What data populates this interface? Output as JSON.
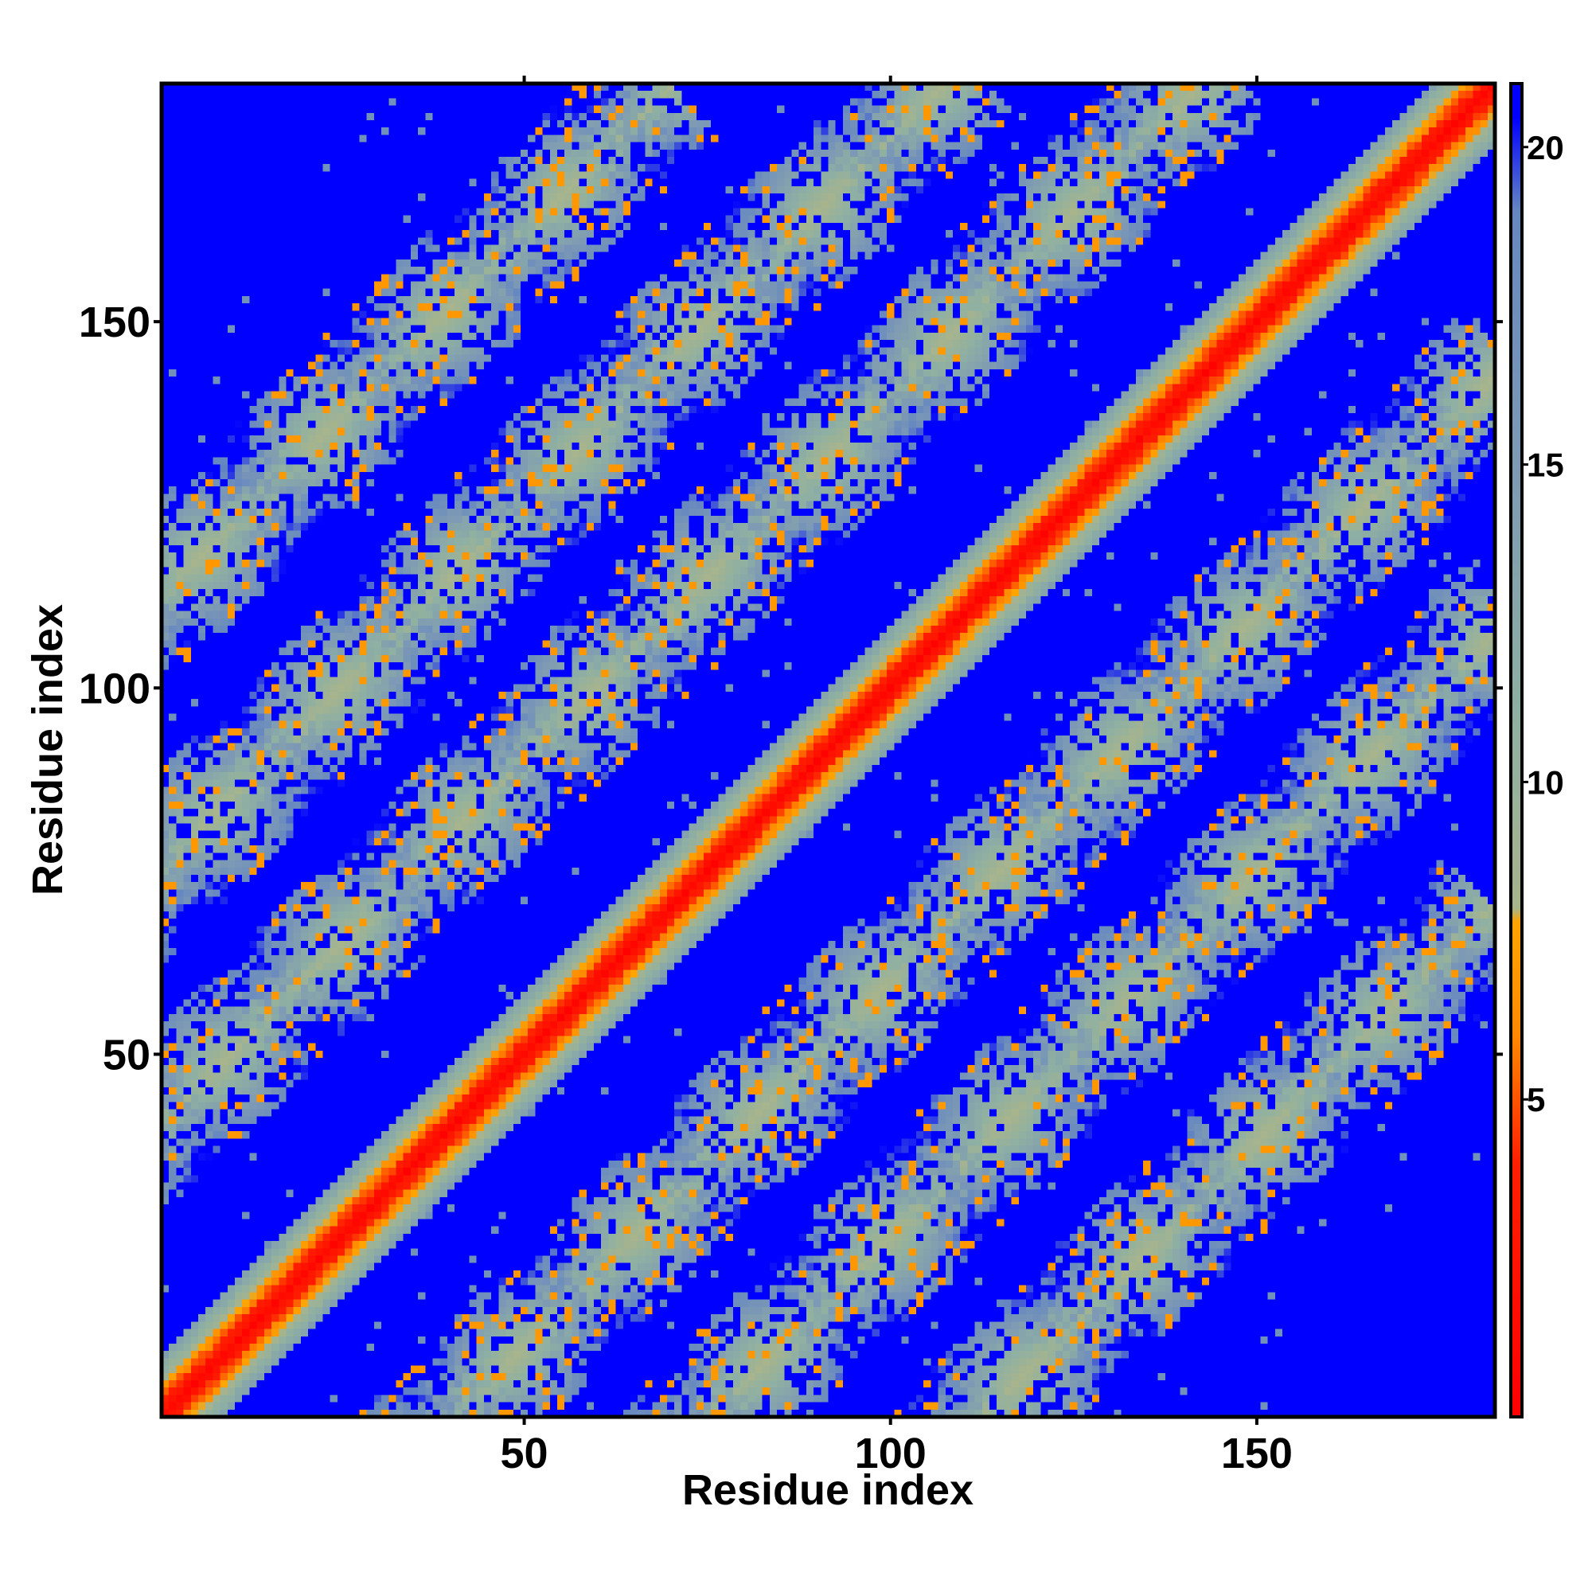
{
  "chart_data": {
    "type": "heatmap",
    "title": "",
    "xlabel": "Residue index",
    "ylabel": "Residue index",
    "n_residues": 182,
    "xlim": [
      1,
      182
    ],
    "ylim": [
      1,
      182
    ],
    "x_ticks": [
      50,
      100,
      150
    ],
    "y_ticks": [
      50,
      100,
      150
    ],
    "colorbar": {
      "min": 0,
      "max": 21,
      "ticks": [
        5,
        10,
        15,
        20
      ],
      "stops": [
        {
          "value": 0,
          "color": "#ff0000"
        },
        {
          "value": 4,
          "color": "#ff2000"
        },
        {
          "value": 6,
          "color": "#ff8a00"
        },
        {
          "value": 7.8,
          "color": "#ffa500"
        },
        {
          "value": 8,
          "color": "#a8b48c"
        },
        {
          "value": 11,
          "color": "#8fb0a2"
        },
        {
          "value": 15,
          "color": "#7e9ab4"
        },
        {
          "value": 19,
          "color": "#6688c0"
        },
        {
          "value": 20.5,
          "color": "#0000ff"
        }
      ]
    },
    "description_of_structure": {
      "diagonal_band_halfwidth": 5,
      "offdiagonal_contact_bands": [
        {
          "diagonal_offset": 40,
          "from_residue": 1,
          "to_residue": 145
        },
        {
          "diagonal_offset": 75,
          "from_residue": 1,
          "to_residue": 110
        },
        {
          "diagonal_offset": 112,
          "from_residue": 1,
          "to_residue": 70
        }
      ],
      "background_value": 21
    }
  },
  "colors": {
    "background_contact": "#0000ff",
    "near_contact": "#ff0000",
    "axis": "#000000"
  }
}
